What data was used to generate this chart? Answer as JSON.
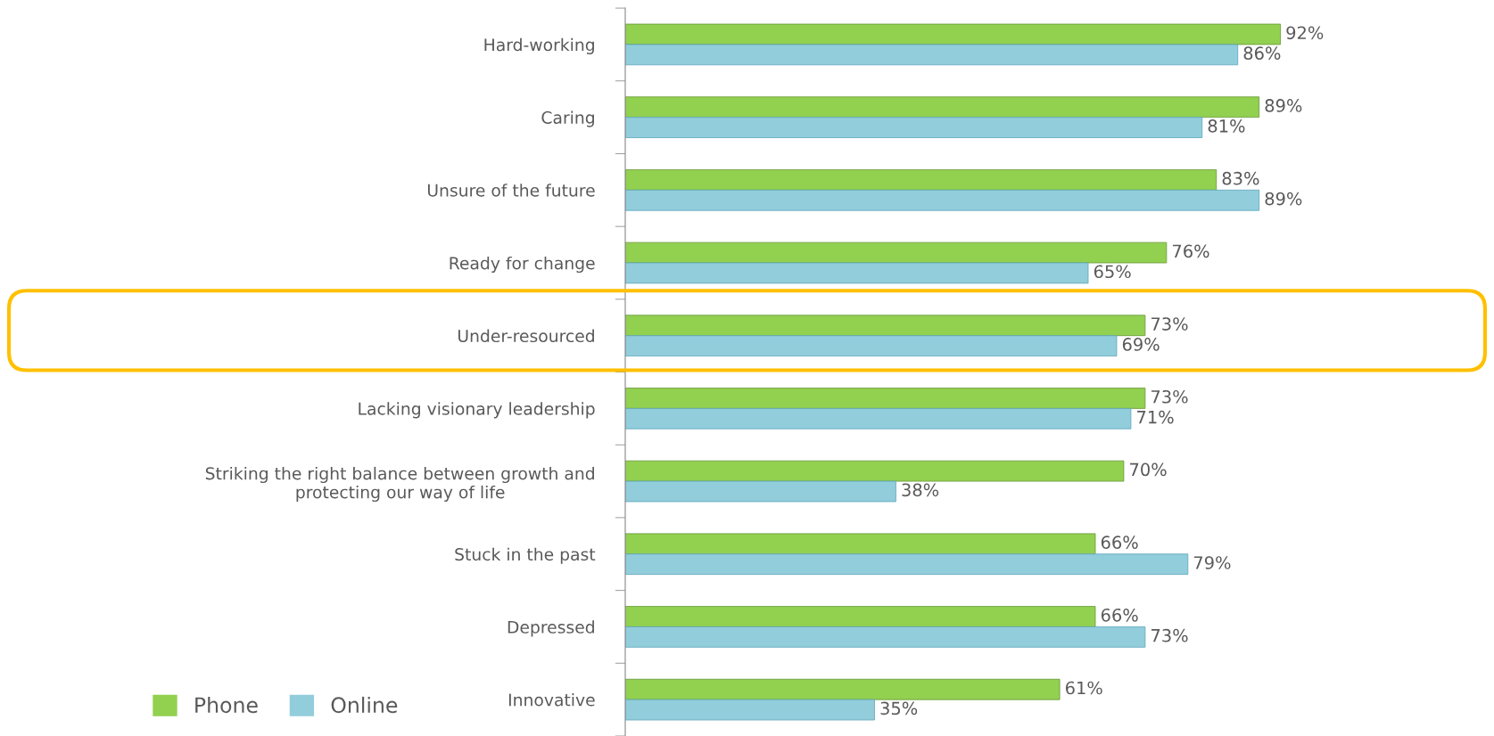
{
  "chart_data": {
    "type": "bar",
    "orientation": "horizontal",
    "categories": [
      "Hard-working",
      "Caring",
      "Unsure of the future",
      "Ready for change",
      "Under-resourced",
      "Lacking visionary leadership",
      "Striking the right balance between growth and\nprotecting our way of life",
      "Stuck in the past",
      "Depressed",
      "Innovative"
    ],
    "series": [
      {
        "name": "Phone",
        "color": "#92d050",
        "values": [
          92,
          89,
          83,
          76,
          73,
          73,
          70,
          66,
          66,
          61
        ],
        "value_labels": [
          "92%",
          "89%",
          "83%",
          "76%",
          "73%",
          "73%",
          "70%",
          "66%",
          "66%",
          "61%"
        ]
      },
      {
        "name": "Online",
        "color": "#92cddc",
        "values": [
          86,
          81,
          89,
          65,
          69,
          71,
          38,
          79,
          73,
          35
        ],
        "value_labels": [
          "86%",
          "81%",
          "89%",
          "65%",
          "69%",
          "71%",
          "38%",
          "79%",
          "73%",
          "35%"
        ]
      }
    ],
    "tick_labels": "y",
    "grid": false,
    "legend": "bottom left"
  }
}
